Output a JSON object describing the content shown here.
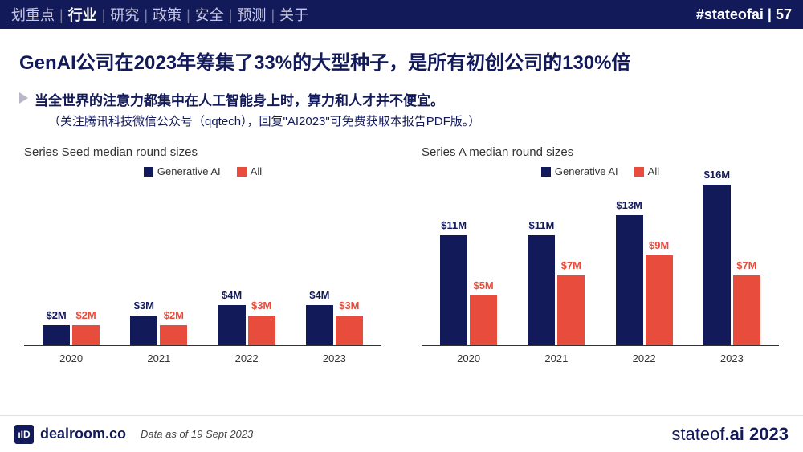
{
  "nav": {
    "items": [
      "划重点",
      "行业",
      "研究",
      "政策",
      "安全",
      "预测",
      "关于"
    ],
    "active_index": 1,
    "hashtag": "#stateofai",
    "page": "57"
  },
  "title": "GenAI公司在2023年筹集了33%的大型种子，是所有初创公司的130%倍",
  "subtitle": "当全世界的注意力都集中在人工智能身上时，算力和人才并不便宜。",
  "subnote": "（关注腾讯科技微信公众号（qqtech），回复\"AI2023\"可免费获取本报告PDF版。）",
  "colors": {
    "genai": "#131a5a",
    "all": "#e84c3d",
    "genai_label": "#131a5a",
    "all_label": "#e84c3d"
  },
  "legend": {
    "genai": "Generative AI",
    "all": "All"
  },
  "chart1": {
    "title": "Series Seed median round sizes",
    "ymax": 16,
    "years": [
      "2020",
      "2021",
      "2022",
      "2023"
    ],
    "genai": [
      2,
      3,
      4,
      4
    ],
    "all": [
      2,
      2,
      3,
      3
    ],
    "genai_labels": [
      "$2M",
      "$3M",
      "$4M",
      "$4M"
    ],
    "all_labels": [
      "$2M",
      "$2M",
      "$3M",
      "$3M"
    ]
  },
  "chart2": {
    "title": "Series A median round sizes",
    "ymax": 16,
    "years": [
      "2020",
      "2021",
      "2022",
      "2023"
    ],
    "genai": [
      11,
      11,
      13,
      16
    ],
    "all": [
      5,
      7,
      9,
      7
    ],
    "genai_labels": [
      "$11M",
      "$11M",
      "$13M",
      "$16M"
    ],
    "all_labels": [
      "$5M",
      "$7M",
      "$9M",
      "$7M"
    ]
  },
  "footer": {
    "logo_glyph": "ıID",
    "logo_text": "dealroom.co",
    "data_note": "Data as of 19 Sept 2023",
    "right_a": "stateof",
    "right_b": ".ai",
    "right_year": "2023"
  }
}
